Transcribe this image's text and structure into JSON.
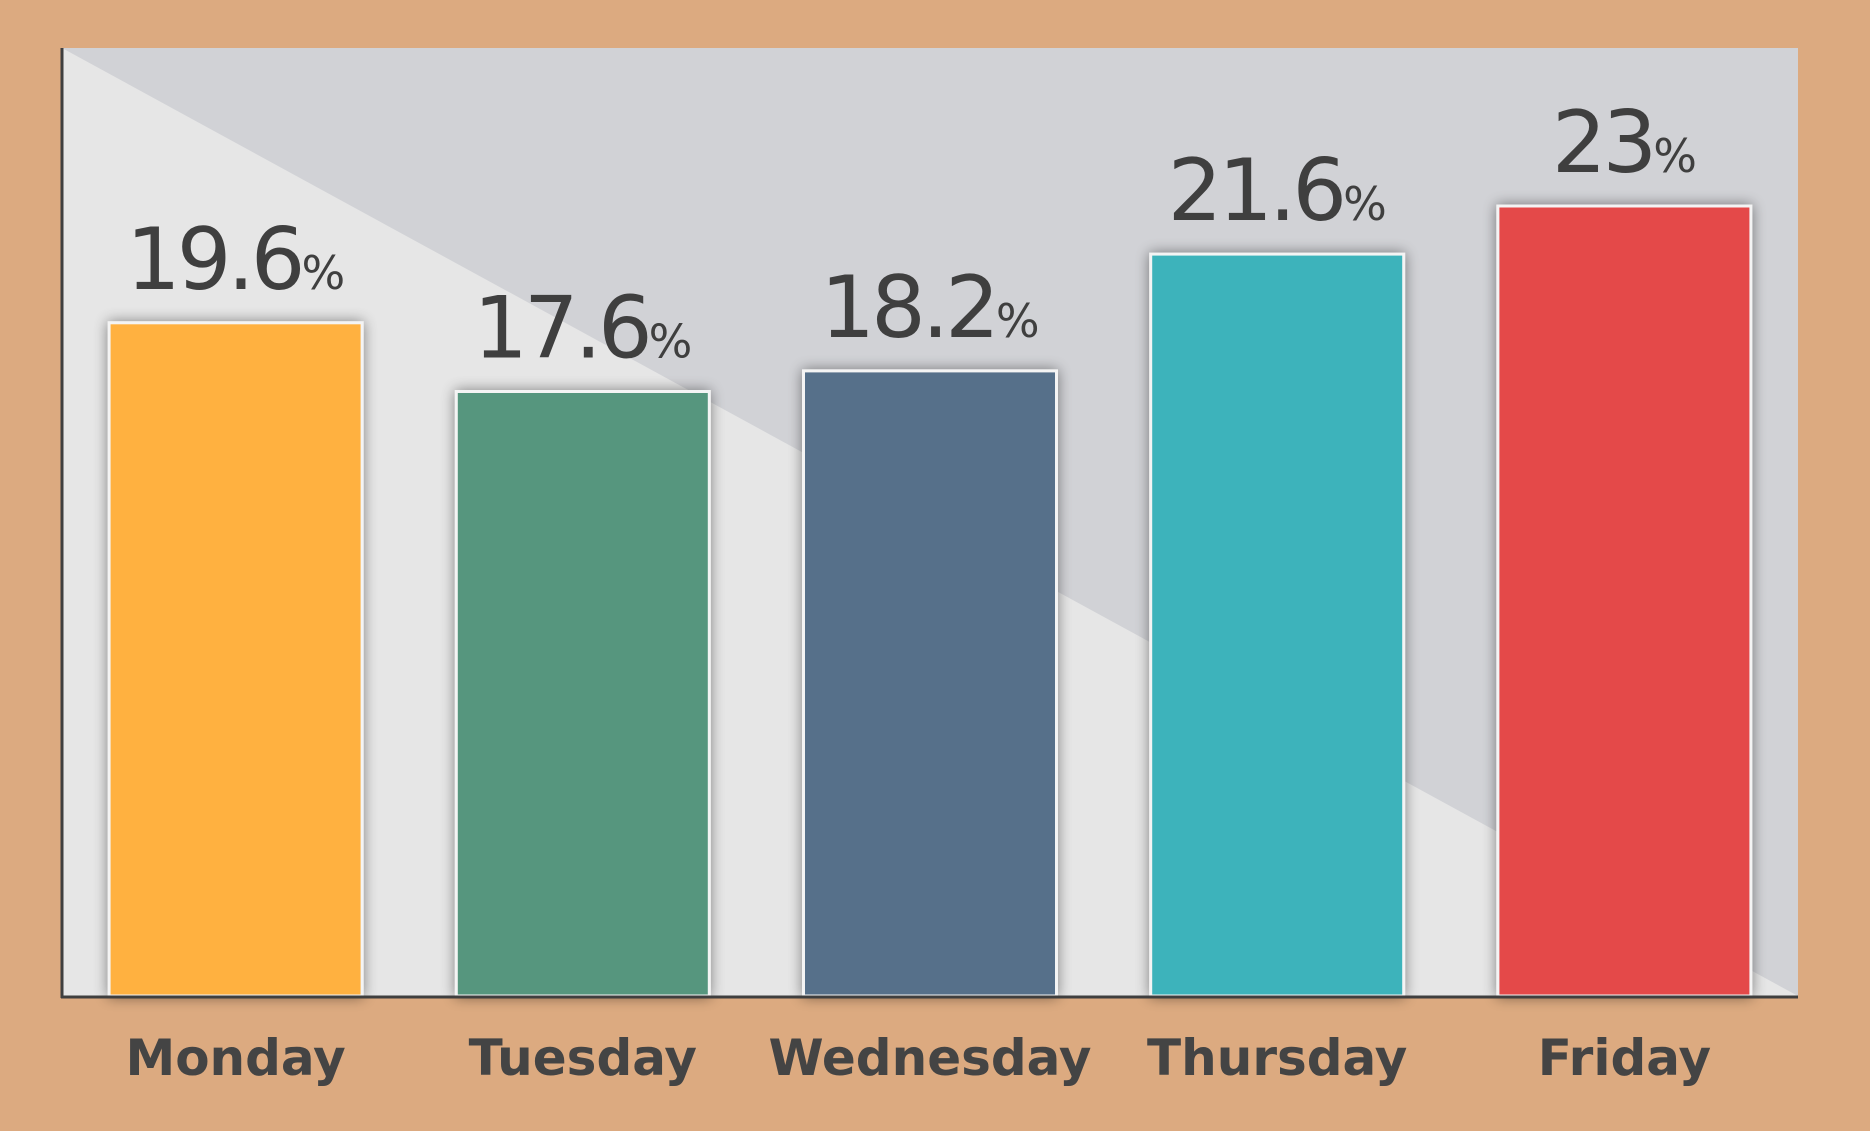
{
  "chart_data": {
    "type": "bar",
    "categories": [
      "Monday",
      "Tuesday",
      "Wednesday",
      "Thursday",
      "Friday"
    ],
    "values": [
      19.6,
      17.6,
      18.2,
      21.6,
      23
    ],
    "value_labels": [
      "19.6",
      "17.6",
      "18.2",
      "21.6",
      "23"
    ],
    "value_unit": "%",
    "colors": [
      "#FFB13F",
      "#56967E",
      "#57708A",
      "#3DB3BB",
      "#E4484A"
    ],
    "title": "",
    "xlabel": "",
    "ylabel": "",
    "ylim": [
      0,
      27.6
    ],
    "grid": false,
    "legend": "none"
  },
  "style": {
    "page_background": "#DCAA80",
    "plot_background_light": "#E6E6E6",
    "plot_background_dark": "#D1D2D6",
    "axis_color": "#3F3F3F",
    "bar_border": "#F4F4F4"
  }
}
